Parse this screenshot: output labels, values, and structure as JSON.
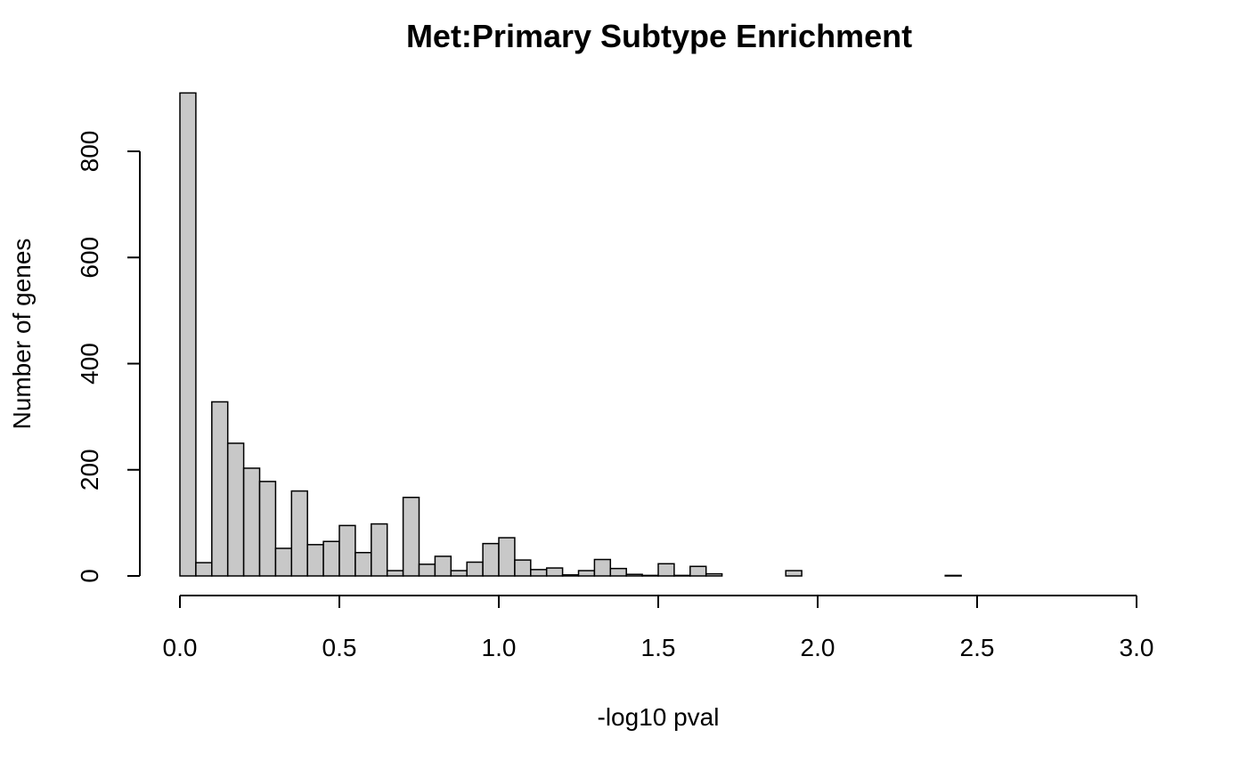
{
  "chart_data": {
    "type": "bar",
    "title": "Met:Primary Subtype Enrichment",
    "xlabel": "-log10 pval",
    "ylabel": "Number of genes",
    "bar_color": "#c8c8c8",
    "border_color": "#000000",
    "bin_width": 0.05,
    "xlim": [
      0,
      3
    ],
    "ylim": [
      0,
      910
    ],
    "x_ticks": [
      "0.0",
      "0.5",
      "1.0",
      "1.5",
      "2.0",
      "2.5",
      "3.0"
    ],
    "y_ticks": [
      "0",
      "200",
      "400",
      "600",
      "800"
    ],
    "bins_start": [
      0.0,
      0.05,
      0.1,
      0.15,
      0.2,
      0.25,
      0.3,
      0.35,
      0.4,
      0.45,
      0.5,
      0.55,
      0.6,
      0.65,
      0.7,
      0.75,
      0.8,
      0.85,
      0.9,
      0.95,
      1.0,
      1.05,
      1.1,
      1.15,
      1.2,
      1.25,
      1.3,
      1.35,
      1.4,
      1.45,
      1.5,
      1.55,
      1.6,
      1.65,
      1.7,
      1.75,
      1.8,
      1.85,
      1.9,
      1.95,
      2.0,
      2.05,
      2.1,
      2.15,
      2.2,
      2.25,
      2.3,
      2.35,
      2.4,
      2.45,
      2.5,
      2.55,
      2.6,
      2.65,
      2.7,
      2.75,
      2.8,
      2.85,
      2.9,
      2.95
    ],
    "values": [
      910,
      25,
      328,
      250,
      203,
      178,
      52,
      160,
      59,
      65,
      95,
      44,
      98,
      10,
      148,
      22,
      37,
      10,
      26,
      61,
      72,
      30,
      12,
      15,
      2,
      10,
      31,
      14,
      3,
      1,
      23,
      1,
      18,
      4,
      0,
      0,
      0,
      0,
      10,
      0,
      0,
      0,
      0,
      0,
      0,
      0,
      0,
      0,
      1,
      0,
      0,
      0,
      0,
      0,
      0,
      0,
      0,
      0,
      0,
      0
    ]
  }
}
